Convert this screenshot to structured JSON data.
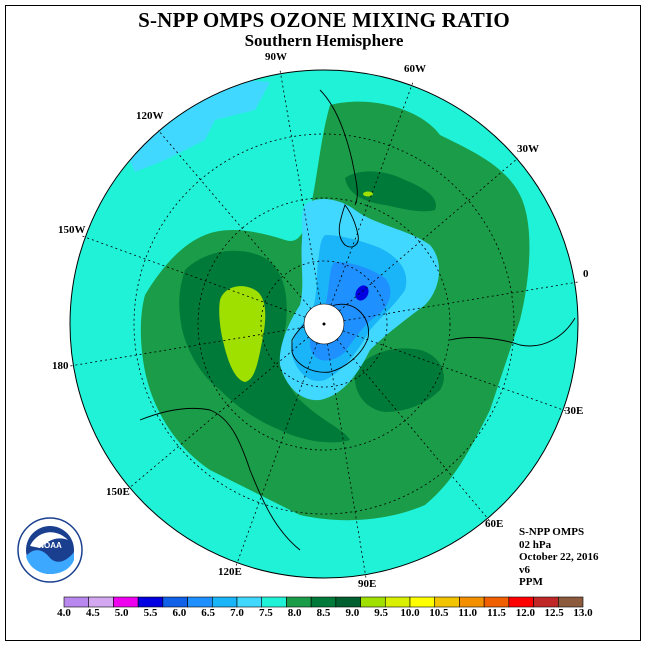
{
  "title": "S-NPP OMPS OZONE MIXING RATIO",
  "subtitle": "Southern Hemisphere",
  "longitude_labels": [
    "90W",
    "60W",
    "30W",
    "0",
    "30E",
    "60E",
    "90E",
    "120E",
    "150E",
    "180",
    "150W",
    "120W"
  ],
  "info": [
    "S-NPP OMPS",
    "02 hPa",
    "October 22, 2016",
    "v6",
    "PPM"
  ],
  "logo_text": "NOAA",
  "colorbar": {
    "levels": [
      "4.0",
      "4.5",
      "5.0",
      "5.5",
      "6.0",
      "6.5",
      "7.0",
      "7.5",
      "8.0",
      "8.5",
      "9.0",
      "9.5",
      "10.0",
      "10.5",
      "11.0",
      "11.5",
      "12.0",
      "12.5",
      "13.0"
    ],
    "colors": [
      "#b988ee",
      "#d4a8f0",
      "#ee00ee",
      "#0000e0",
      "#1060e8",
      "#1e90ff",
      "#1ab4f8",
      "#40d8ff",
      "#20f2d8",
      "#1a9c48",
      "#007a38",
      "#005f2e",
      "#a0e000",
      "#d8f000",
      "#ffff00",
      "#f2c400",
      "#f29000",
      "#f06000",
      "#ff0000",
      "#c02828",
      "#8c5a3c"
    ]
  },
  "colors": {
    "background_field": "#20f2d8",
    "green_light": "#1a9c48",
    "green_dark": "#007a38",
    "lime": "#a0e000",
    "blue_pale": "#40d8ff",
    "blue_mid": "#1e90ff",
    "blue_deep": "#0000e0"
  }
}
